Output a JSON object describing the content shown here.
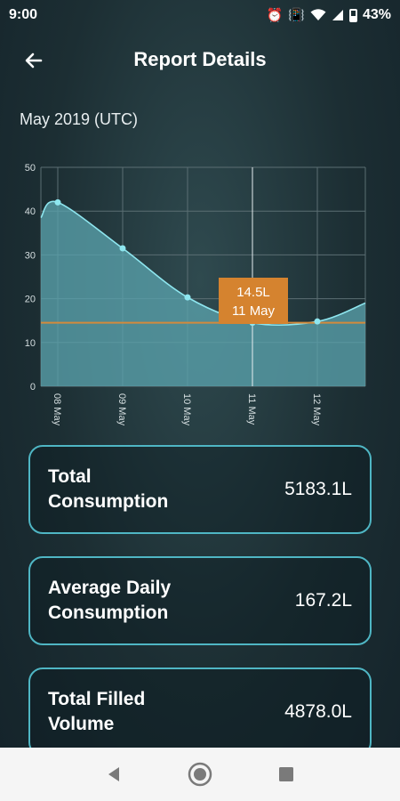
{
  "status_bar": {
    "time": "9:00",
    "battery": "43%",
    "icons": [
      "alarm-icon",
      "vibrate-icon",
      "wifi-icon",
      "signal-icon",
      "battery-icon"
    ]
  },
  "header": {
    "title": "Report Details",
    "back_icon": "arrow-left-icon"
  },
  "period": "May 2019 (UTC)",
  "chart_data": {
    "type": "area",
    "x": [
      "08 May",
      "09 May",
      "10 May",
      "11 May",
      "12 May"
    ],
    "values": [
      42,
      31.5,
      20.3,
      14.5,
      14.8
    ],
    "edge_values": {
      "start": 38.5,
      "end": 19
    },
    "ylim": [
      0,
      50
    ],
    "yticks": [
      0,
      10,
      20,
      30,
      40,
      50
    ],
    "grid": true,
    "highlight": {
      "index": 3,
      "value_label": "14.5L",
      "date_label": "11 May"
    },
    "colors": {
      "fill": "#5aa2ac",
      "line": "#8ee6ef",
      "point": "#8ee6ef",
      "grid": "#5b6e73",
      "highlight_line": "#d38a3c",
      "tooltip_bg": "#d5832f"
    }
  },
  "cards": [
    {
      "label": "Total Consumption",
      "value": "5183.1L"
    },
    {
      "label": "Average Daily Consumption",
      "value": "167.2L"
    },
    {
      "label": "Total Filled Volume",
      "value": "4878.0L"
    }
  ],
  "nav": {
    "icons": [
      "back-triangle-icon",
      "home-circle-icon",
      "recents-square-icon"
    ]
  }
}
